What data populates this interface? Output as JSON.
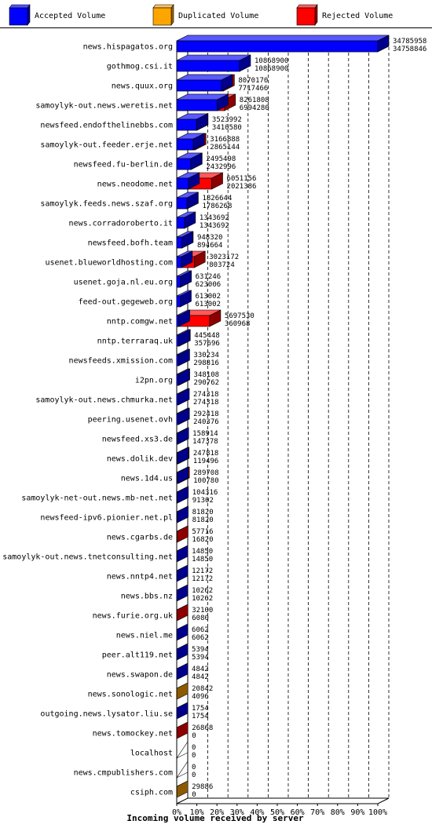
{
  "legend": [
    {
      "label": "Accepted Volume",
      "color": "#0000ff"
    },
    {
      "label": "Duplicated Volume",
      "color": "#ffa500"
    },
    {
      "label": "Rejected Volume",
      "color": "#ff0000"
    }
  ],
  "chart_data": {
    "type": "bar",
    "orientation": "horizontal-3d",
    "title": "",
    "xlabel": "Incoming volume received by server",
    "ylabel": "",
    "xlim": [
      0,
      100
    ],
    "xticks": [
      "0%",
      "10%",
      "20%",
      "30%",
      "40%",
      "50%",
      "60%",
      "70%",
      "80%",
      "90%",
      "100%"
    ],
    "grid": true,
    "legend_position": "top",
    "max_value": 34785958,
    "servers": [
      {
        "name": "news.hispagatos.org",
        "total": 34785958,
        "accepted": 34758846
      },
      {
        "name": "gothmog.csi.it",
        "total": 10868900,
        "accepted": 10868900
      },
      {
        "name": "news.quux.org",
        "total": 8070170,
        "accepted": 7717466
      },
      {
        "name": "samoylyk-out.news.weretis.net",
        "total": 8261808,
        "accepted": 6994280
      },
      {
        "name": "newsfeed.endofthelinebbs.com",
        "total": 3523992,
        "accepted": 3410580
      },
      {
        "name": "samoylyk-out.feeder.erje.net",
        "total": 3166888,
        "accepted": 2865144
      },
      {
        "name": "newsfeed.fu-berlin.de",
        "total": 2495498,
        "accepted": 2432996
      },
      {
        "name": "news.neodome.net",
        "total": 6051156,
        "accepted": 2021386
      },
      {
        "name": "samoylyk.feeds.news.szaf.org",
        "total": 1826644,
        "accepted": 1786268
      },
      {
        "name": "news.corradoroberto.it",
        "total": 1343692,
        "accepted": 1343692
      },
      {
        "name": "newsfeed.bofh.team",
        "total": 948320,
        "accepted": 894664
      },
      {
        "name": "usenet.blueworldhosting.com",
        "total": 3023172,
        "accepted": 803724
      },
      {
        "name": "usenet.goja.nl.eu.org",
        "total": 631246,
        "accepted": 623006
      },
      {
        "name": "feed-out.gegeweb.org",
        "total": 613002,
        "accepted": 613002
      },
      {
        "name": "nntp.comgw.net",
        "total": 5697530,
        "accepted": 360968
      },
      {
        "name": "nntp.terraraq.uk",
        "total": 445448,
        "accepted": 357696
      },
      {
        "name": "newsfeeds.xmission.com",
        "total": 330234,
        "accepted": 298816
      },
      {
        "name": "i2pn.org",
        "total": 348108,
        "accepted": 290762
      },
      {
        "name": "samoylyk-out.news.chmurka.net",
        "total": 274318,
        "accepted": 274318
      },
      {
        "name": "peering.usenet.ovh",
        "total": 292418,
        "accepted": 240376
      },
      {
        "name": "newsfeed.xs3.de",
        "total": 158914,
        "accepted": 147378,
        "dup": true
      },
      {
        "name": "news.dolik.dev",
        "total": 247818,
        "accepted": 119496
      },
      {
        "name": "news.1d4.us",
        "total": 289708,
        "accepted": 100780
      },
      {
        "name": "samoylyk-net-out.news.mb-net.net",
        "total": 104316,
        "accepted": 91302
      },
      {
        "name": "newsfeed-ipv6.pionier.net.pl",
        "total": 81820,
        "accepted": 81820
      },
      {
        "name": "news.cgarbs.de",
        "total": 57716,
        "accepted": 16820
      },
      {
        "name": "samoylyk-out.news.tnetconsulting.net",
        "total": 14850,
        "accepted": 14850
      },
      {
        "name": "news.nntp4.net",
        "total": 12172,
        "accepted": 12172
      },
      {
        "name": "news.bbs.nz",
        "total": 10262,
        "accepted": 10262
      },
      {
        "name": "news.furie.org.uk",
        "total": 32100,
        "accepted": 6080
      },
      {
        "name": "news.niel.me",
        "total": 6062,
        "accepted": 6062
      },
      {
        "name": "peer.alt119.net",
        "total": 5394,
        "accepted": 5394
      },
      {
        "name": "news.swapon.de",
        "total": 4842,
        "accepted": 4842
      },
      {
        "name": "news.sonologic.net",
        "total": 20842,
        "accepted": 4096,
        "dup": true
      },
      {
        "name": "outgoing.news.lysator.liu.se",
        "total": 1754,
        "accepted": 1754
      },
      {
        "name": "news.tomockey.net",
        "total": 26868,
        "accepted": 0
      },
      {
        "name": "localhost",
        "total": 0,
        "accepted": 0
      },
      {
        "name": "news.cmpublishers.com",
        "total": 0,
        "accepted": 0
      },
      {
        "name": "csiph.com",
        "total": 29886,
        "accepted": 0,
        "dup": true
      }
    ]
  }
}
